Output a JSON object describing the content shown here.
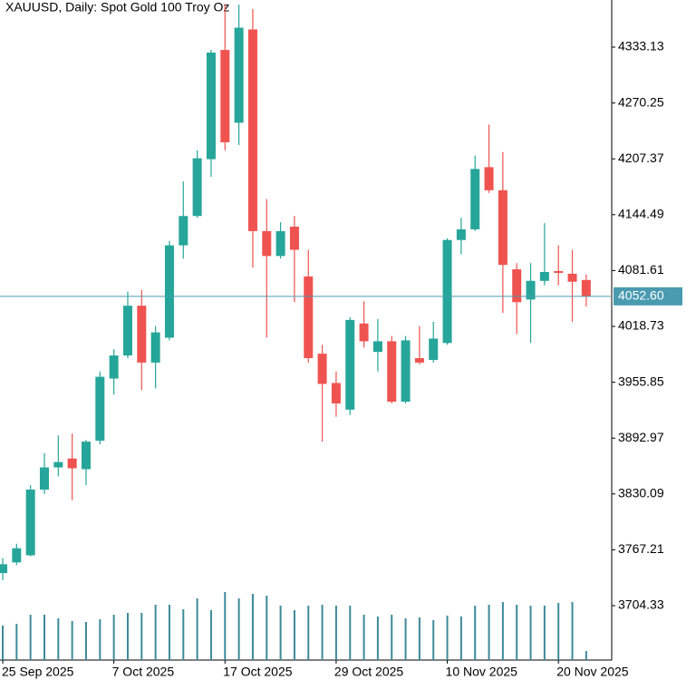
{
  "chart_data": {
    "type": "candlestick",
    "title": "XAUUSD, Daily:  Spot Gold 100 Troy Oz",
    "categories": [
      "25 Sep 2025",
      null,
      null,
      null,
      null,
      null,
      null,
      null,
      "7 Oct 2025",
      null,
      null,
      null,
      null,
      null,
      null,
      null,
      "17 Oct 2025",
      null,
      null,
      null,
      null,
      null,
      null,
      null,
      "29 Oct 2025",
      null,
      null,
      null,
      null,
      null,
      null,
      null,
      "10 Nov 2025",
      null,
      null,
      null,
      null,
      null,
      null,
      null,
      "20 Nov 2025",
      null,
      null
    ],
    "open": [
      3741,
      3753,
      3761,
      3835,
      3860,
      3870,
      3858,
      3890,
      3960,
      3986,
      4042,
      3978,
      4006,
      4110,
      4143,
      4207,
      4330,
      4248,
      4353,
      4126,
      4098,
      4131,
      4075,
      3988,
      3955,
      3925,
      4022,
      3990,
      4002,
      3934,
      3983,
      3981,
      4000,
      4116,
      4128,
      4198,
      4172,
      4083,
      4049,
      4070,
      4081,
      4078,
      4071
    ],
    "high": [
      3758,
      3774,
      3840,
      3876,
      3896,
      3898,
      3891,
      3968,
      3993,
      4058,
      4060,
      4019,
      4115,
      4182,
      4217,
      4330,
      4381,
      4381,
      4376,
      4162,
      4136,
      4143,
      4105,
      3998,
      3968,
      4029,
      4047,
      4027,
      4008,
      4008,
      4019,
      4024,
      4118,
      4141,
      4211,
      4246,
      4215,
      4090,
      4090,
      4135,
      4110,
      4105,
      4077
    ],
    "low": [
      3733,
      3750,
      3760,
      3830,
      3850,
      3823,
      3840,
      3886,
      3942,
      3983,
      3947,
      3949,
      4003,
      4095,
      4141,
      4187,
      4217,
      4223,
      4085,
      4006,
      4095,
      4046,
      3978,
      3889,
      3917,
      3919,
      3995,
      3968,
      3932,
      3932,
      3976,
      3978,
      3998,
      4100,
      4126,
      4169,
      4034,
      4010,
      4000,
      4065,
      4065,
      4024,
      4041
    ],
    "close": [
      3751,
      3769,
      3835,
      3860,
      3866,
      3859,
      3889,
      3962,
      3986,
      4042,
      3978,
      4012,
      4110,
      4143,
      4208,
      4327,
      4226,
      4355,
      4126,
      4098,
      4126,
      4105,
      3983,
      3954,
      3932,
      4026,
      4002,
      4002,
      3934,
      4003,
      3978,
      4005,
      4116,
      4128,
      4196,
      4172,
      4088,
      4046,
      4070,
      4080,
      4079,
      4069,
      4052.6
    ],
    "volume": [
      38,
      40,
      50,
      50,
      46,
      43,
      42,
      45,
      50,
      52,
      52,
      61,
      61,
      56,
      68,
      55,
      75,
      68,
      73,
      71,
      60,
      55,
      60,
      61,
      60,
      60,
      50,
      48,
      50,
      46,
      47,
      44,
      49,
      48,
      60,
      61,
      64,
      61,
      60,
      60,
      63,
      64,
      10
    ],
    "up_color": "#26a69a",
    "down_color": "#ef5350",
    "volume_color": "#3d8a99",
    "last_price": {
      "value": 4052.6,
      "label": "4052.60"
    },
    "last_price_color": "#4a9bb0",
    "ylim": [
      3643.1,
      4386.2
    ],
    "yticks": [
      3704.33,
      3767.21,
      3830.09,
      3892.97,
      3955.85,
      4018.73,
      4081.61,
      4144.49,
      4207.37,
      4270.25,
      4333.13
    ]
  }
}
